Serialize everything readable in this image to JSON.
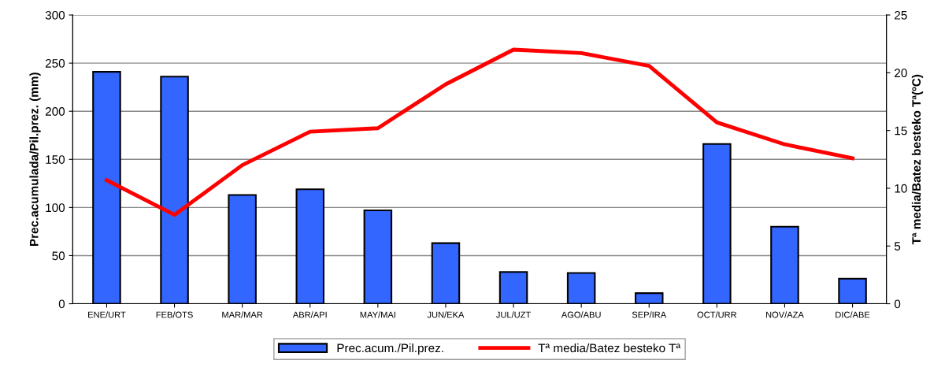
{
  "chart_data": {
    "type": "bar",
    "ylabel": "Prec.acumulada/Pil.prez. (mm)",
    "y2label": "Tª media/Batez besteko Tª(ºC)",
    "categories": [
      "ENE/URT",
      "FEB/OTS",
      "MAR/MAR",
      "ABR/API",
      "MAY/MAI",
      "JUN/EKA",
      "JUL/UZT",
      "AGO/ABU",
      "SEP/IRA",
      "OCT/URR",
      "NOV/AZA",
      "DIC/ABE"
    ],
    "series": [
      {
        "name": "Prec.acum./Pil.prez.",
        "color": "#3366ff",
        "values": [
          241,
          236,
          113,
          119,
          97,
          63,
          33,
          32,
          11,
          166,
          80,
          26
        ]
      },
      {
        "name": "Tª media/Batez besteko Tª",
        "type": "line",
        "axis": "y2",
        "color": "#ff0000",
        "values": [
          10.7,
          7.7,
          12.0,
          14.9,
          15.2,
          19.0,
          22.0,
          21.7,
          20.6,
          15.7,
          13.8,
          12.6
        ]
      }
    ],
    "ylim": [
      0,
      300
    ],
    "yticks": [
      0,
      50,
      100,
      150,
      200,
      250,
      300
    ],
    "y2lim": [
      0,
      25
    ],
    "y2ticks": [
      0,
      5,
      10,
      15,
      20,
      25
    ],
    "grid": "y",
    "legend": "bottom",
    "marker": "none",
    "line_style": "solid"
  }
}
